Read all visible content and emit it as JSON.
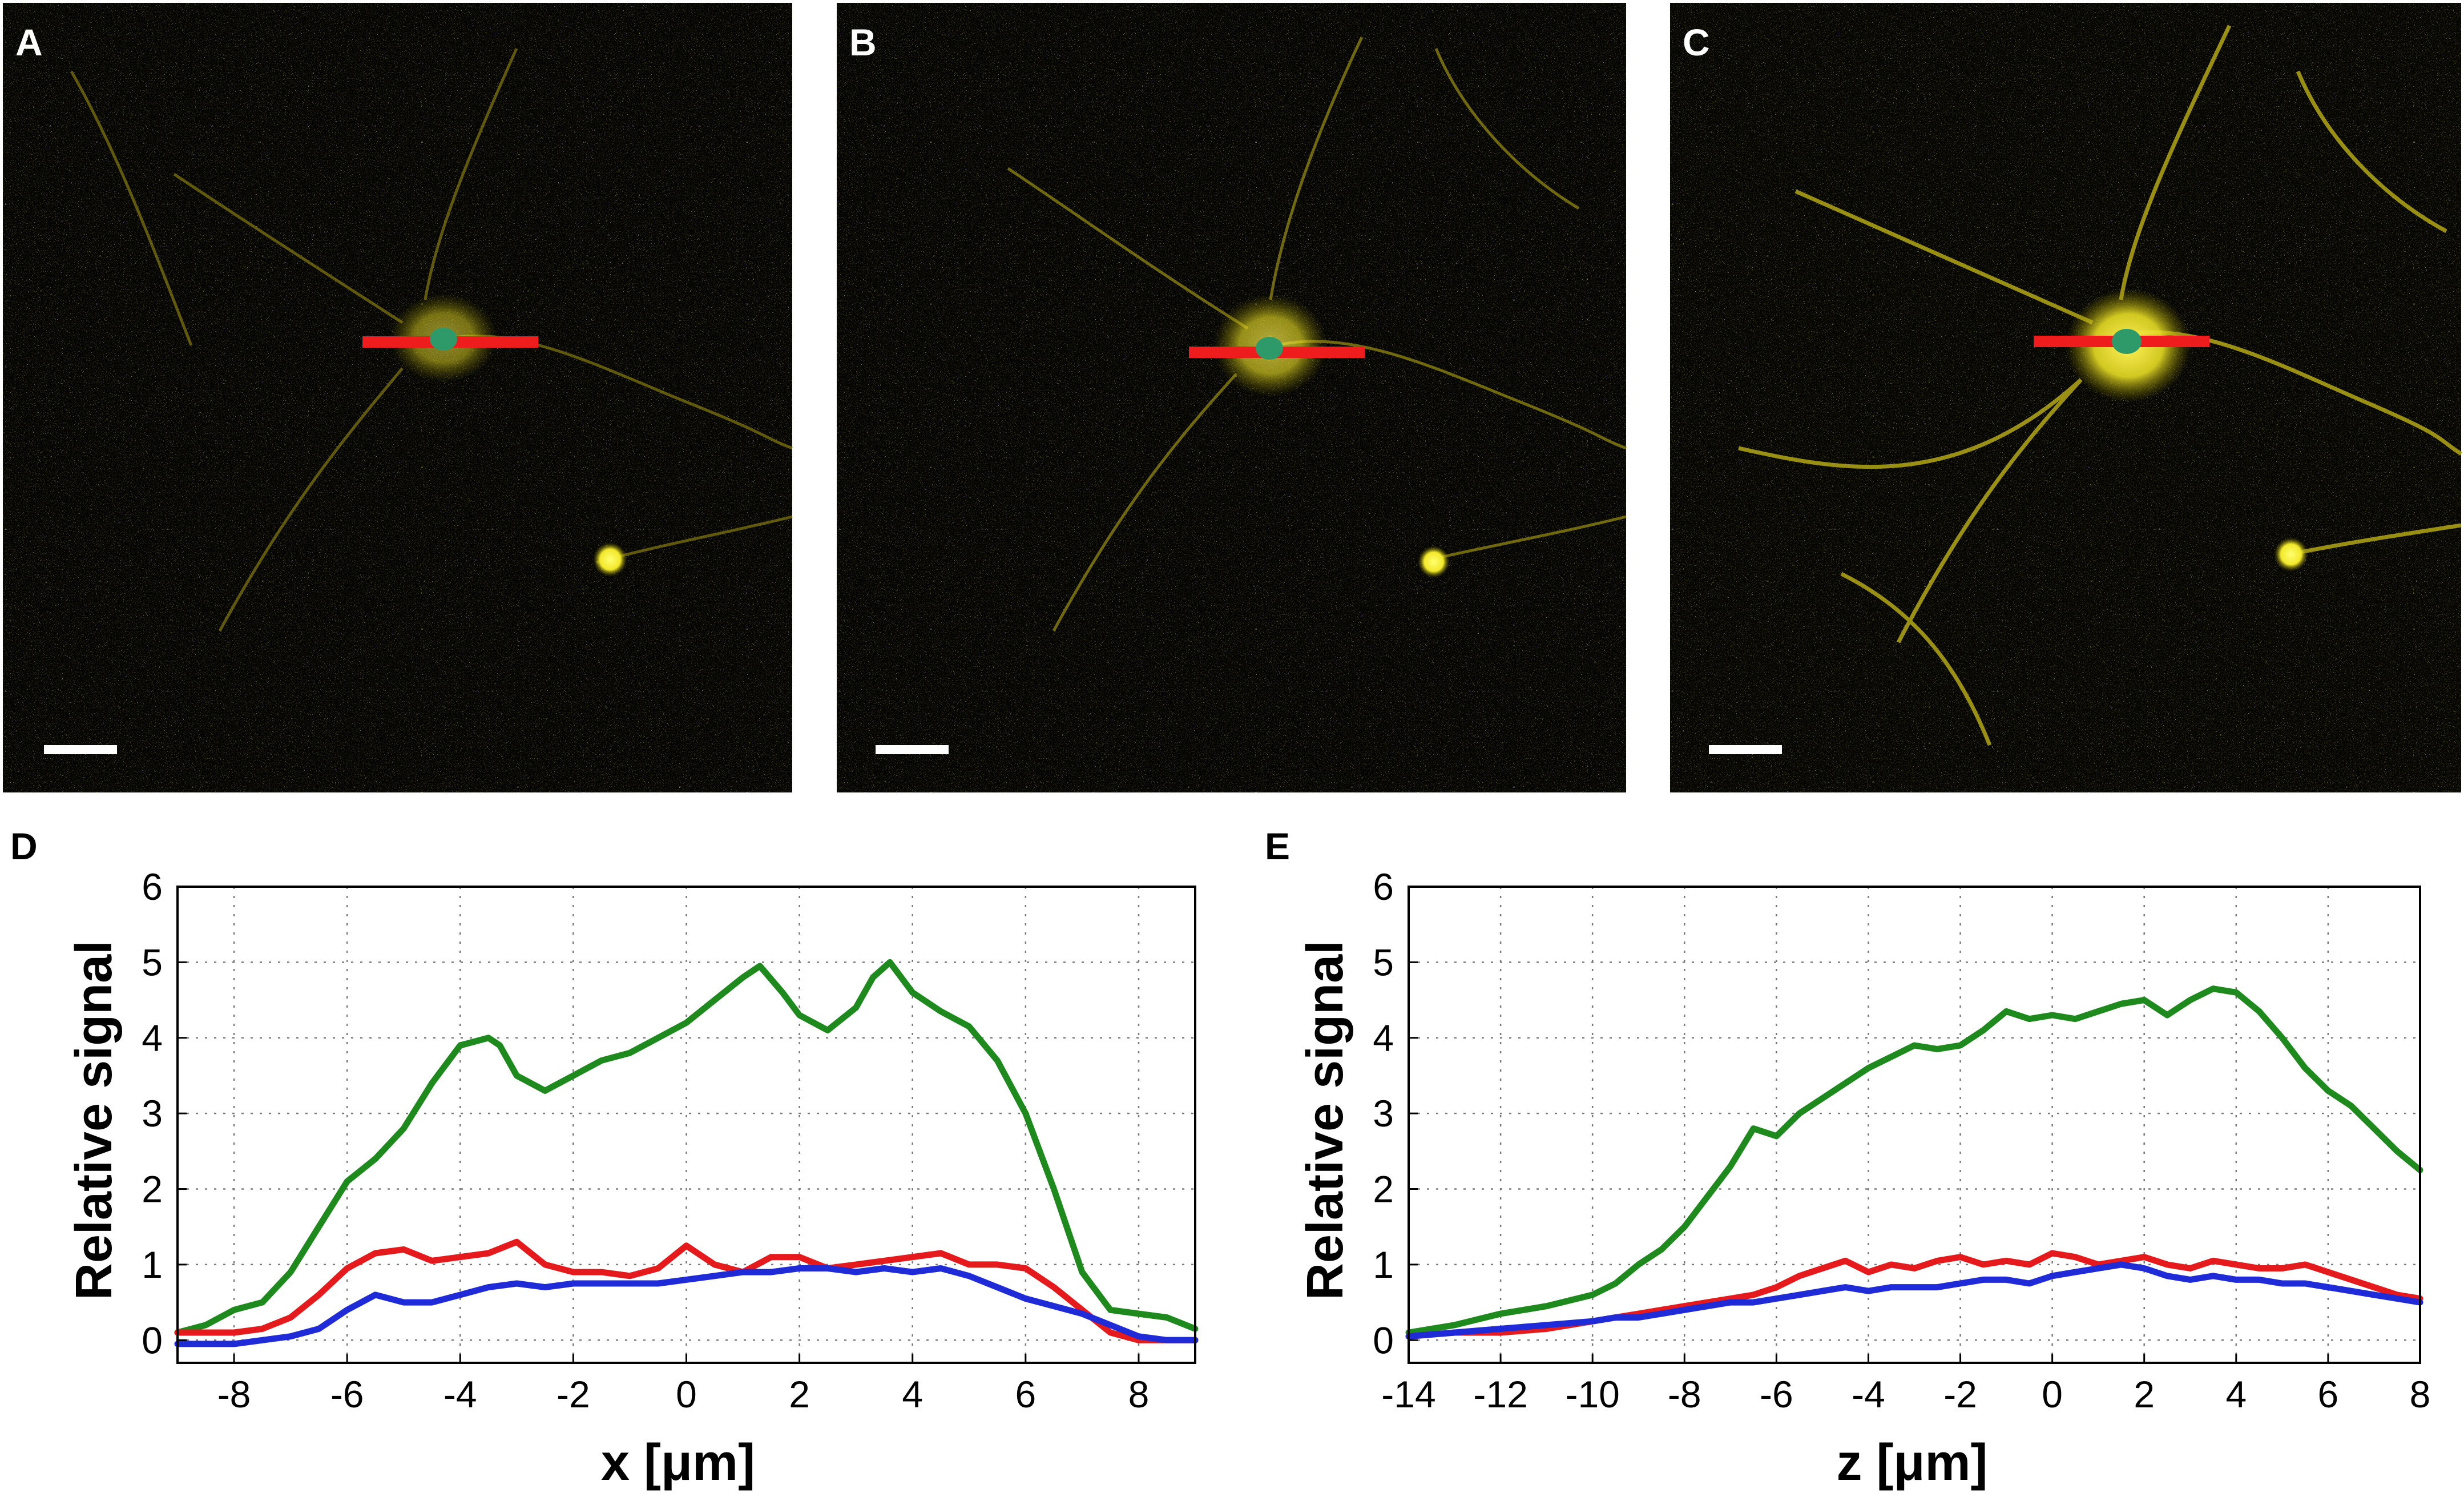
{
  "figure": {
    "micrographs": [
      {
        "letter": "A",
        "cell_brightness": 0.55
      },
      {
        "letter": "B",
        "cell_brightness": 0.7
      },
      {
        "letter": "C",
        "cell_brightness": 1.0
      }
    ]
  },
  "chart_data": [
    {
      "panel": "D",
      "type": "line",
      "xlabel": "x [μm]",
      "ylabel": "Relative signal",
      "xlim": [
        -9,
        9
      ],
      "ylim": [
        -0.3,
        6
      ],
      "xticks": [
        -8,
        -6,
        -4,
        -2,
        0,
        2,
        4,
        6,
        8
      ],
      "yticks": [
        0,
        1,
        2,
        3,
        4,
        5,
        6
      ],
      "grid": true,
      "series": [
        {
          "name": "green",
          "color": "#1e8a1e",
          "x": [
            -9,
            -8.5,
            -8,
            -7.5,
            -7,
            -6.5,
            -6,
            -5.5,
            -5,
            -4.5,
            -4,
            -3.5,
            -3.3,
            -3,
            -2.5,
            -2,
            -1.5,
            -1,
            -0.5,
            0,
            0.5,
            1,
            1.3,
            1.7,
            2,
            2.5,
            3,
            3.3,
            3.6,
            4,
            4.5,
            5,
            5.5,
            6,
            6.5,
            7,
            7.5,
            8,
            8.5,
            9
          ],
          "y": [
            0.1,
            0.2,
            0.4,
            0.5,
            0.9,
            1.5,
            2.1,
            2.4,
            2.8,
            3.4,
            3.9,
            4.0,
            3.9,
            3.5,
            3.3,
            3.5,
            3.7,
            3.8,
            4.0,
            4.2,
            4.5,
            4.8,
            4.95,
            4.6,
            4.3,
            4.1,
            4.4,
            4.8,
            5.0,
            4.6,
            4.35,
            4.15,
            3.7,
            3.0,
            2.0,
            0.9,
            0.4,
            0.35,
            0.3,
            0.15
          ]
        },
        {
          "name": "red",
          "color": "#e41a1c",
          "x": [
            -9,
            -8.5,
            -8,
            -7.5,
            -7,
            -6.5,
            -6,
            -5.5,
            -5,
            -4.5,
            -4,
            -3.5,
            -3,
            -2.5,
            -2,
            -1.5,
            -1,
            -0.5,
            0,
            0.5,
            1,
            1.5,
            2,
            2.5,
            3,
            3.5,
            4,
            4.5,
            5,
            5.5,
            6,
            6.5,
            7,
            7.5,
            8,
            8.5,
            9
          ],
          "y": [
            0.1,
            0.1,
            0.1,
            0.15,
            0.3,
            0.6,
            0.95,
            1.15,
            1.2,
            1.05,
            1.1,
            1.15,
            1.3,
            1.0,
            0.9,
            0.9,
            0.85,
            0.95,
            1.25,
            1.0,
            0.9,
            1.1,
            1.1,
            0.95,
            1.0,
            1.05,
            1.1,
            1.15,
            1.0,
            1.0,
            0.95,
            0.7,
            0.4,
            0.1,
            0.0,
            0.0,
            0.0
          ]
        },
        {
          "name": "blue",
          "color": "#1f2bd6",
          "x": [
            -9,
            -8.5,
            -8,
            -7.5,
            -7,
            -6.5,
            -6,
            -5.5,
            -5,
            -4.5,
            -4,
            -3.5,
            -3,
            -2.5,
            -2,
            -1.5,
            -1,
            -0.5,
            0,
            0.5,
            1,
            1.5,
            2,
            2.5,
            3,
            3.5,
            4,
            4.5,
            5,
            5.5,
            6,
            6.5,
            7,
            7.5,
            8,
            8.5,
            9
          ],
          "y": [
            -0.05,
            -0.05,
            -0.05,
            0.0,
            0.05,
            0.15,
            0.4,
            0.6,
            0.5,
            0.5,
            0.6,
            0.7,
            0.75,
            0.7,
            0.75,
            0.75,
            0.75,
            0.75,
            0.8,
            0.85,
            0.9,
            0.9,
            0.95,
            0.95,
            0.9,
            0.95,
            0.9,
            0.95,
            0.85,
            0.7,
            0.55,
            0.45,
            0.35,
            0.2,
            0.05,
            0.0,
            0.0
          ]
        }
      ]
    },
    {
      "panel": "E",
      "type": "line",
      "xlabel": "z [μm]",
      "ylabel": "Relative signal",
      "xlim": [
        -14,
        8
      ],
      "ylim": [
        -0.3,
        6
      ],
      "xticks": [
        -14,
        -12,
        -10,
        -8,
        -6,
        -4,
        -2,
        0,
        2,
        4,
        6,
        8
      ],
      "yticks": [
        0,
        1,
        2,
        3,
        4,
        5,
        6
      ],
      "grid": true,
      "series": [
        {
          "name": "green",
          "color": "#1e8a1e",
          "x": [
            -14,
            -13,
            -12,
            -11,
            -10,
            -9.5,
            -9,
            -8.5,
            -8,
            -7.5,
            -7,
            -6.5,
            -6,
            -5.5,
            -5,
            -4.5,
            -4,
            -3.5,
            -3,
            -2.5,
            -2,
            -1.5,
            -1,
            -0.5,
            0,
            0.5,
            1,
            1.5,
            2,
            2.5,
            3,
            3.5,
            4,
            4.5,
            5,
            5.5,
            6,
            6.5,
            7,
            7.5,
            8
          ],
          "y": [
            0.1,
            0.2,
            0.35,
            0.45,
            0.6,
            0.75,
            1.0,
            1.2,
            1.5,
            1.9,
            2.3,
            2.8,
            2.7,
            3.0,
            3.2,
            3.4,
            3.6,
            3.75,
            3.9,
            3.85,
            3.9,
            4.1,
            4.35,
            4.25,
            4.3,
            4.25,
            4.35,
            4.45,
            4.5,
            4.3,
            4.5,
            4.65,
            4.6,
            4.35,
            4.0,
            3.6,
            3.3,
            3.1,
            2.8,
            2.5,
            2.25
          ]
        },
        {
          "name": "red",
          "color": "#e41a1c",
          "x": [
            -14,
            -13,
            -12,
            -11,
            -10,
            -9.5,
            -9,
            -8.5,
            -8,
            -7.5,
            -7,
            -6.5,
            -6,
            -5.5,
            -5,
            -4.5,
            -4,
            -3.5,
            -3,
            -2.5,
            -2,
            -1.5,
            -1,
            -0.5,
            0,
            0.5,
            1,
            1.5,
            2,
            2.5,
            3,
            3.5,
            4,
            4.5,
            5,
            5.5,
            6,
            6.5,
            7,
            7.5,
            8
          ],
          "y": [
            0.05,
            0.1,
            0.1,
            0.15,
            0.25,
            0.3,
            0.35,
            0.4,
            0.45,
            0.5,
            0.55,
            0.6,
            0.7,
            0.85,
            0.95,
            1.05,
            0.9,
            1.0,
            0.95,
            1.05,
            1.1,
            1.0,
            1.05,
            1.0,
            1.15,
            1.1,
            1.0,
            1.05,
            1.1,
            1.0,
            0.95,
            1.05,
            1.0,
            0.95,
            0.95,
            1.0,
            0.9,
            0.8,
            0.7,
            0.6,
            0.55
          ]
        },
        {
          "name": "blue",
          "color": "#1f2bd6",
          "x": [
            -14,
            -13,
            -12,
            -11,
            -10,
            -9.5,
            -9,
            -8.5,
            -8,
            -7.5,
            -7,
            -6.5,
            -6,
            -5.5,
            -5,
            -4.5,
            -4,
            -3.5,
            -3,
            -2.5,
            -2,
            -1.5,
            -1,
            -0.5,
            0,
            0.5,
            1,
            1.5,
            2,
            2.5,
            3,
            3.5,
            4,
            4.5,
            5,
            5.5,
            6,
            6.5,
            7,
            7.5,
            8
          ],
          "y": [
            0.05,
            0.1,
            0.15,
            0.2,
            0.25,
            0.3,
            0.3,
            0.35,
            0.4,
            0.45,
            0.5,
            0.5,
            0.55,
            0.6,
            0.65,
            0.7,
            0.65,
            0.7,
            0.7,
            0.7,
            0.75,
            0.8,
            0.8,
            0.75,
            0.85,
            0.9,
            0.95,
            1.0,
            0.95,
            0.85,
            0.8,
            0.85,
            0.8,
            0.8,
            0.75,
            0.75,
            0.7,
            0.65,
            0.6,
            0.55,
            0.5
          ]
        }
      ]
    }
  ]
}
